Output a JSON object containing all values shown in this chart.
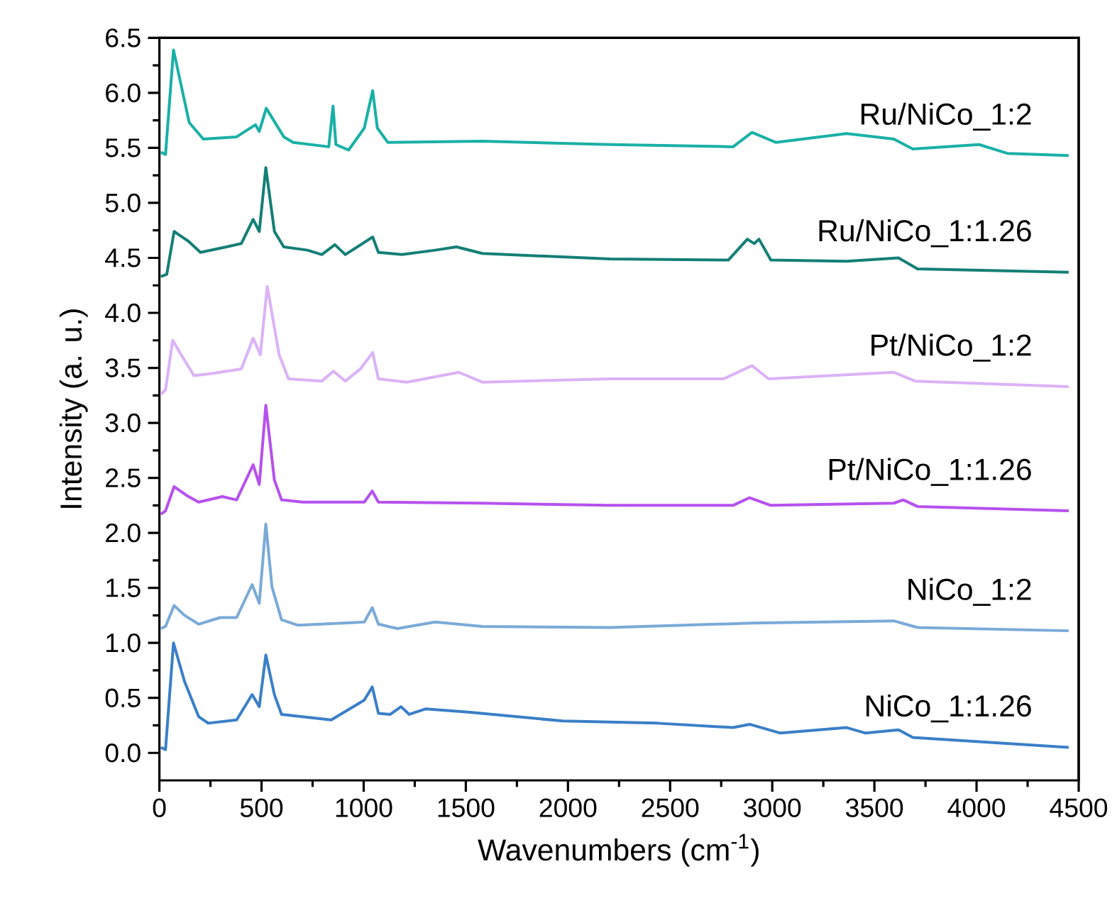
{
  "chart_data": {
    "type": "line",
    "xlabel": "Wavenumbers (cm$^{-1}$)",
    "ylabel": "Intensity (a. u.)",
    "xlim": [
      0,
      4500
    ],
    "ylim": [
      -0.25,
      6.5
    ],
    "xticks": [
      0,
      500,
      1000,
      1500,
      2000,
      2500,
      3000,
      3500,
      4000,
      4500
    ],
    "yticks": [
      {
        "value": 0,
        "label": "0.0"
      },
      0.5,
      {
        "value": 1,
        "label": "1.0"
      },
      1.5,
      {
        "value": 2,
        "label": "2.0"
      },
      2.5,
      {
        "value": 3,
        "label": "3.0"
      },
      3.5,
      {
        "value": 4,
        "label": "4.0"
      },
      4.5,
      {
        "value": 5,
        "label": "5.0"
      },
      5.5,
      {
        "value": 6,
        "label": "6.0"
      },
      6.5
    ],
    "series": [
      {
        "name": "NiCo_1:1.26",
        "color": "#3a7fc8",
        "x": [
          7,
          30,
          69,
          123,
          192,
          239,
          378,
          454,
          489,
          521,
          563,
          598,
          841,
          1003,
          1042,
          1072,
          1130,
          1183,
          1223,
          1304,
          1512,
          1975,
          2438,
          2808,
          2889,
          3040,
          3364,
          3457,
          3618,
          3688,
          4451
        ],
        "values": [
          0.05,
          0.03,
          1.0,
          0.65,
          0.33,
          0.27,
          0.3,
          0.53,
          0.42,
          0.89,
          0.53,
          0.35,
          0.3,
          0.48,
          0.6,
          0.36,
          0.35,
          0.42,
          0.35,
          0.4,
          0.37,
          0.29,
          0.27,
          0.23,
          0.26,
          0.18,
          0.23,
          0.18,
          0.21,
          0.14,
          0.05
        ]
      },
      {
        "name": "NiCo_1:2",
        "color": "#7aaad8",
        "x": [
          7,
          30,
          72,
          123,
          192,
          297,
          378,
          454,
          489,
          521,
          551,
          598,
          679,
          1003,
          1042,
          1072,
          1165,
          1350,
          1581,
          2206,
          2901,
          3595,
          3711,
          4451
        ],
        "values": [
          1.13,
          1.15,
          1.34,
          1.25,
          1.17,
          1.23,
          1.23,
          1.53,
          1.36,
          2.08,
          1.51,
          1.21,
          1.16,
          1.19,
          1.32,
          1.17,
          1.13,
          1.19,
          1.15,
          1.14,
          1.18,
          1.2,
          1.14,
          1.11
        ]
      },
      {
        "name": "Pt/NiCo_1:1.26",
        "color": "#b651ee",
        "x": [
          7,
          30,
          72,
          134,
          192,
          308,
          378,
          459,
          489,
          521,
          563,
          598,
          702,
          1003,
          1042,
          1072,
          1581,
          2206,
          2808,
          2889,
          2993,
          3595,
          3641,
          3711,
          4451
        ],
        "values": [
          2.17,
          2.2,
          2.42,
          2.34,
          2.28,
          2.33,
          2.3,
          2.62,
          2.44,
          3.16,
          2.48,
          2.3,
          2.28,
          2.28,
          2.38,
          2.28,
          2.27,
          2.25,
          2.25,
          2.32,
          2.25,
          2.27,
          2.3,
          2.24,
          2.2
        ]
      },
      {
        "name": "Pt/NiCo_1:2",
        "color": "#dbb2f7",
        "x": [
          7,
          30,
          65,
          100,
          169,
          262,
          401,
          459,
          494,
          528,
          586,
          632,
          795,
          852,
          910,
          984,
          1044,
          1072,
          1211,
          1466,
          1581,
          2206,
          2762,
          2901,
          2982,
          3595,
          3699,
          4451
        ],
        "values": [
          3.26,
          3.3,
          3.75,
          3.64,
          3.43,
          3.45,
          3.49,
          3.77,
          3.62,
          4.24,
          3.62,
          3.4,
          3.38,
          3.47,
          3.38,
          3.49,
          3.64,
          3.4,
          3.37,
          3.46,
          3.37,
          3.4,
          3.4,
          3.52,
          3.4,
          3.46,
          3.38,
          3.33
        ]
      },
      {
        "name": "Ru/NiCo_1:1.26",
        "color": "#147f76",
        "x": [
          7,
          36,
          72,
          143,
          201,
          328,
          401,
          459,
          489,
          521,
          563,
          609,
          725,
          795,
          859,
          910,
          1044,
          1072,
          1188,
          1350,
          1454,
          1581,
          2206,
          2785,
          2878,
          2912,
          2935,
          2993,
          3364,
          3618,
          3711,
          4451
        ],
        "values": [
          4.33,
          4.35,
          4.74,
          4.65,
          4.55,
          4.6,
          4.63,
          4.85,
          4.74,
          5.32,
          4.74,
          4.6,
          4.57,
          4.53,
          4.62,
          4.53,
          4.69,
          4.55,
          4.53,
          4.57,
          4.6,
          4.54,
          4.49,
          4.48,
          4.67,
          4.63,
          4.67,
          4.48,
          4.47,
          4.5,
          4.4,
          4.37
        ]
      },
      {
        "name": "Ru/NiCo_1:2",
        "color": "#19b0a6",
        "x": [
          7,
          30,
          69,
          146,
          215,
          378,
          470,
          489,
          523,
          609,
          655,
          829,
          850,
          864,
          926,
          1003,
          1044,
          1067,
          1118,
          1581,
          2206,
          2808,
          2901,
          3017,
          3364,
          3595,
          3688,
          4012,
          4151,
          4451
        ],
        "values": [
          5.46,
          5.44,
          6.39,
          5.73,
          5.58,
          5.6,
          5.71,
          5.65,
          5.86,
          5.6,
          5.55,
          5.51,
          5.88,
          5.53,
          5.48,
          5.68,
          6.02,
          5.68,
          5.55,
          5.56,
          5.53,
          5.51,
          5.64,
          5.55,
          5.63,
          5.58,
          5.49,
          5.53,
          5.45,
          5.43
        ]
      }
    ]
  }
}
